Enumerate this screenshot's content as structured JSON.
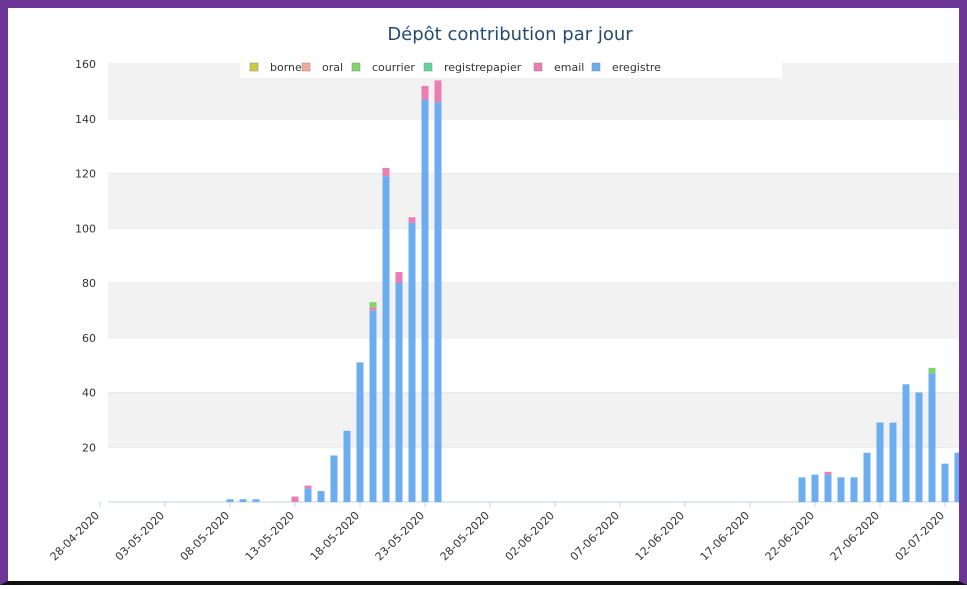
{
  "chart_data": {
    "type": "stacked_bar",
    "title": "Dépôt contribution par jour",
    "categories": [
      "28-04-2020",
      null,
      null,
      null,
      null,
      "03-05-2020",
      null,
      null,
      null,
      null,
      "08-05-2020",
      null,
      null,
      null,
      null,
      "13-05-2020",
      null,
      null,
      null,
      null,
      "18-05-2020",
      null,
      null,
      null,
      null,
      "23-05-2020",
      null,
      null,
      null,
      null,
      "28-05-2020",
      null,
      null,
      null,
      null,
      "02-06-2020",
      null,
      null,
      null,
      null,
      "07-06-2020",
      null,
      null,
      null,
      null,
      "12-06-2020",
      null,
      null,
      null,
      null,
      "17-06-2020",
      null,
      null,
      null,
      null,
      "22-06-2020",
      null,
      null,
      null,
      null,
      "27-06-2020",
      null,
      null,
      null,
      null,
      "02-07-2020",
      null
    ],
    "series": [
      {
        "name": "borne",
        "color": "#c9cc3f",
        "values": [
          0,
          0,
          0,
          0,
          0,
          0,
          0,
          0,
          0,
          0,
          0,
          0,
          0,
          0,
          0,
          0,
          0,
          0,
          0,
          0,
          0,
          0,
          0,
          0,
          0,
          0,
          0,
          0,
          0,
          0,
          0,
          0,
          0,
          0,
          0,
          0,
          0,
          0,
          0,
          0,
          0,
          0,
          0,
          0,
          0,
          0,
          0,
          0,
          0,
          0,
          0,
          0,
          0,
          0,
          0,
          0,
          0,
          0,
          0,
          0,
          0,
          0,
          0,
          0,
          0,
          0,
          0
        ]
      },
      {
        "name": "oral",
        "color": "#f2a99f",
        "values": [
          0,
          0,
          0,
          0,
          0,
          0,
          0,
          0,
          0,
          0,
          0,
          0,
          0,
          0,
          0,
          0,
          0,
          0,
          0,
          0,
          0,
          0,
          0,
          0,
          0,
          0,
          0,
          0,
          0,
          0,
          0,
          0,
          0,
          0,
          0,
          0,
          0,
          0,
          0,
          0,
          0,
          0,
          0,
          0,
          0,
          0,
          0,
          0,
          0,
          0,
          0,
          0,
          0,
          0,
          0,
          0,
          0,
          0,
          0,
          0,
          0,
          0,
          0,
          0,
          0,
          0,
          0
        ]
      },
      {
        "name": "courrier",
        "color": "#7fd46a",
        "values": [
          0,
          0,
          0,
          0,
          0,
          0,
          0,
          0,
          0,
          0,
          0,
          0,
          0,
          0,
          0,
          0,
          0,
          0,
          0,
          0,
          0,
          2,
          0,
          0,
          0,
          0,
          0,
          0,
          0,
          0,
          0,
          0,
          0,
          0,
          0,
          0,
          0,
          0,
          0,
          0,
          0,
          0,
          0,
          0,
          0,
          0,
          0,
          0,
          0,
          0,
          0,
          0,
          0,
          0,
          0,
          0,
          0,
          0,
          0,
          0,
          0,
          0,
          0,
          0,
          2,
          0,
          0
        ]
      },
      {
        "name": "registrepapier",
        "color": "#5fd49b",
        "values": [
          0,
          0,
          0,
          0,
          0,
          0,
          0,
          0,
          0,
          0,
          0,
          0,
          0,
          0,
          0,
          0,
          0,
          0,
          0,
          0,
          0,
          0,
          0,
          0,
          0,
          0,
          0,
          0,
          0,
          0,
          0,
          0,
          0,
          0,
          0,
          0,
          0,
          0,
          0,
          0,
          0,
          0,
          0,
          0,
          0,
          0,
          0,
          0,
          0,
          0,
          0,
          0,
          0,
          0,
          0,
          0,
          0,
          0,
          0,
          0,
          0,
          0,
          0,
          0,
          0,
          0,
          0
        ]
      },
      {
        "name": "email",
        "color": "#ea7db3",
        "values": [
          0,
          0,
          0,
          0,
          0,
          0,
          0,
          0,
          0,
          0,
          0,
          0,
          0,
          0,
          0,
          2,
          1,
          0,
          0,
          0,
          0,
          1,
          3,
          4,
          2,
          5,
          8,
          0,
          0,
          0,
          0,
          0,
          0,
          0,
          0,
          0,
          0,
          0,
          0,
          0,
          0,
          0,
          0,
          0,
          0,
          0,
          0,
          0,
          0,
          0,
          0,
          0,
          0,
          0,
          0,
          0,
          1,
          0,
          0,
          0,
          0,
          0,
          0,
          0,
          0,
          0,
          0
        ]
      },
      {
        "name": "eregistre",
        "color": "#6cadf0",
        "values": [
          0,
          0,
          0,
          0,
          0,
          0,
          0,
          0,
          0,
          0,
          1,
          1,
          1,
          0,
          0,
          0,
          5,
          4,
          17,
          26,
          51,
          70,
          119,
          80,
          102,
          147,
          146,
          0,
          0,
          0,
          0,
          0,
          0,
          0,
          0,
          0,
          0,
          0,
          0,
          0,
          0,
          0,
          0,
          0,
          0,
          0,
          0,
          0,
          0,
          0,
          0,
          0,
          0,
          0,
          9,
          10,
          10,
          9,
          9,
          18,
          29,
          29,
          43,
          40,
          47,
          14,
          18
        ]
      }
    ],
    "ylim": [
      0,
      160
    ],
    "yticks": [
      20,
      40,
      60,
      80,
      100,
      120,
      140,
      160
    ],
    "grid": true,
    "legend": "top"
  }
}
